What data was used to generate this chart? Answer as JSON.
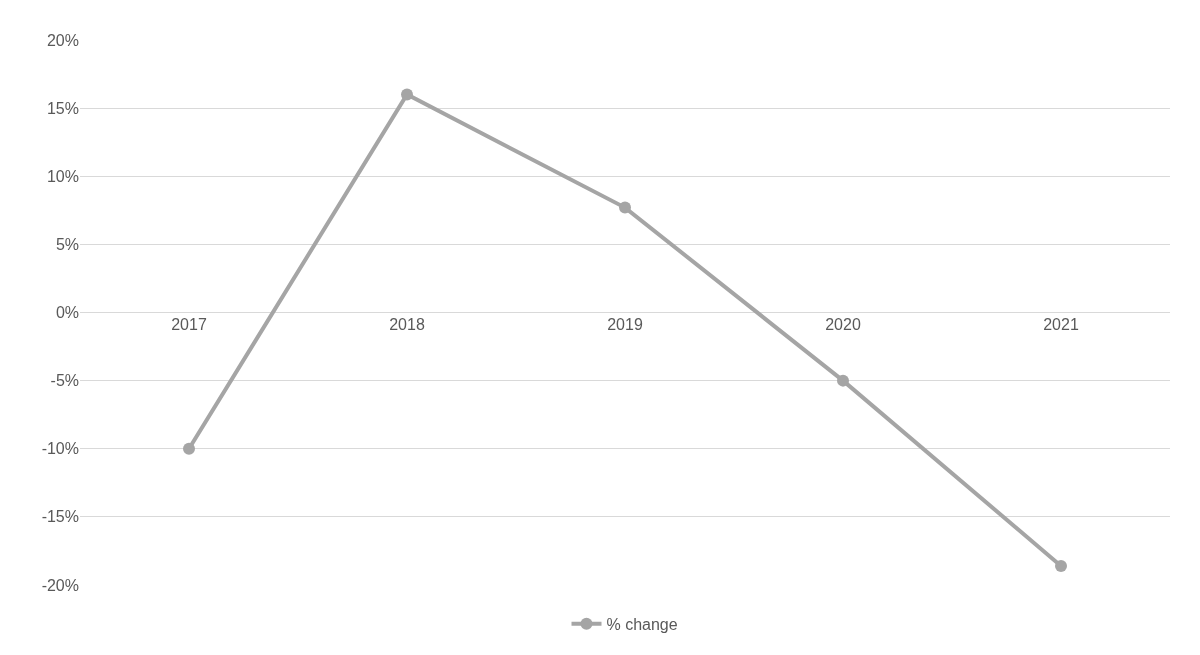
{
  "chart_data": {
    "type": "line",
    "categories": [
      "2017",
      "2018",
      "2019",
      "2020",
      "2021"
    ],
    "series": [
      {
        "name": "% change",
        "color": "#a5a5a5",
        "values": [
          -10,
          16,
          7.7,
          -5,
          -18.6
        ]
      }
    ],
    "ylim": [
      -20,
      20
    ],
    "yticks": [
      {
        "value": -20,
        "label": "-20%"
      },
      {
        "value": -15,
        "label": "-15%"
      },
      {
        "value": -10,
        "label": "-10%"
      },
      {
        "value": -5,
        "label": "-5%"
      },
      {
        "value": 0,
        "label": "0%"
      },
      {
        "value": 5,
        "label": "5%"
      },
      {
        "value": 10,
        "label": "10%"
      },
      {
        "value": 15,
        "label": "15%"
      },
      {
        "value": 20,
        "label": "20%"
      }
    ],
    "grid": "y",
    "legend": "bottom",
    "marker": "circle",
    "line_style": "solid"
  }
}
